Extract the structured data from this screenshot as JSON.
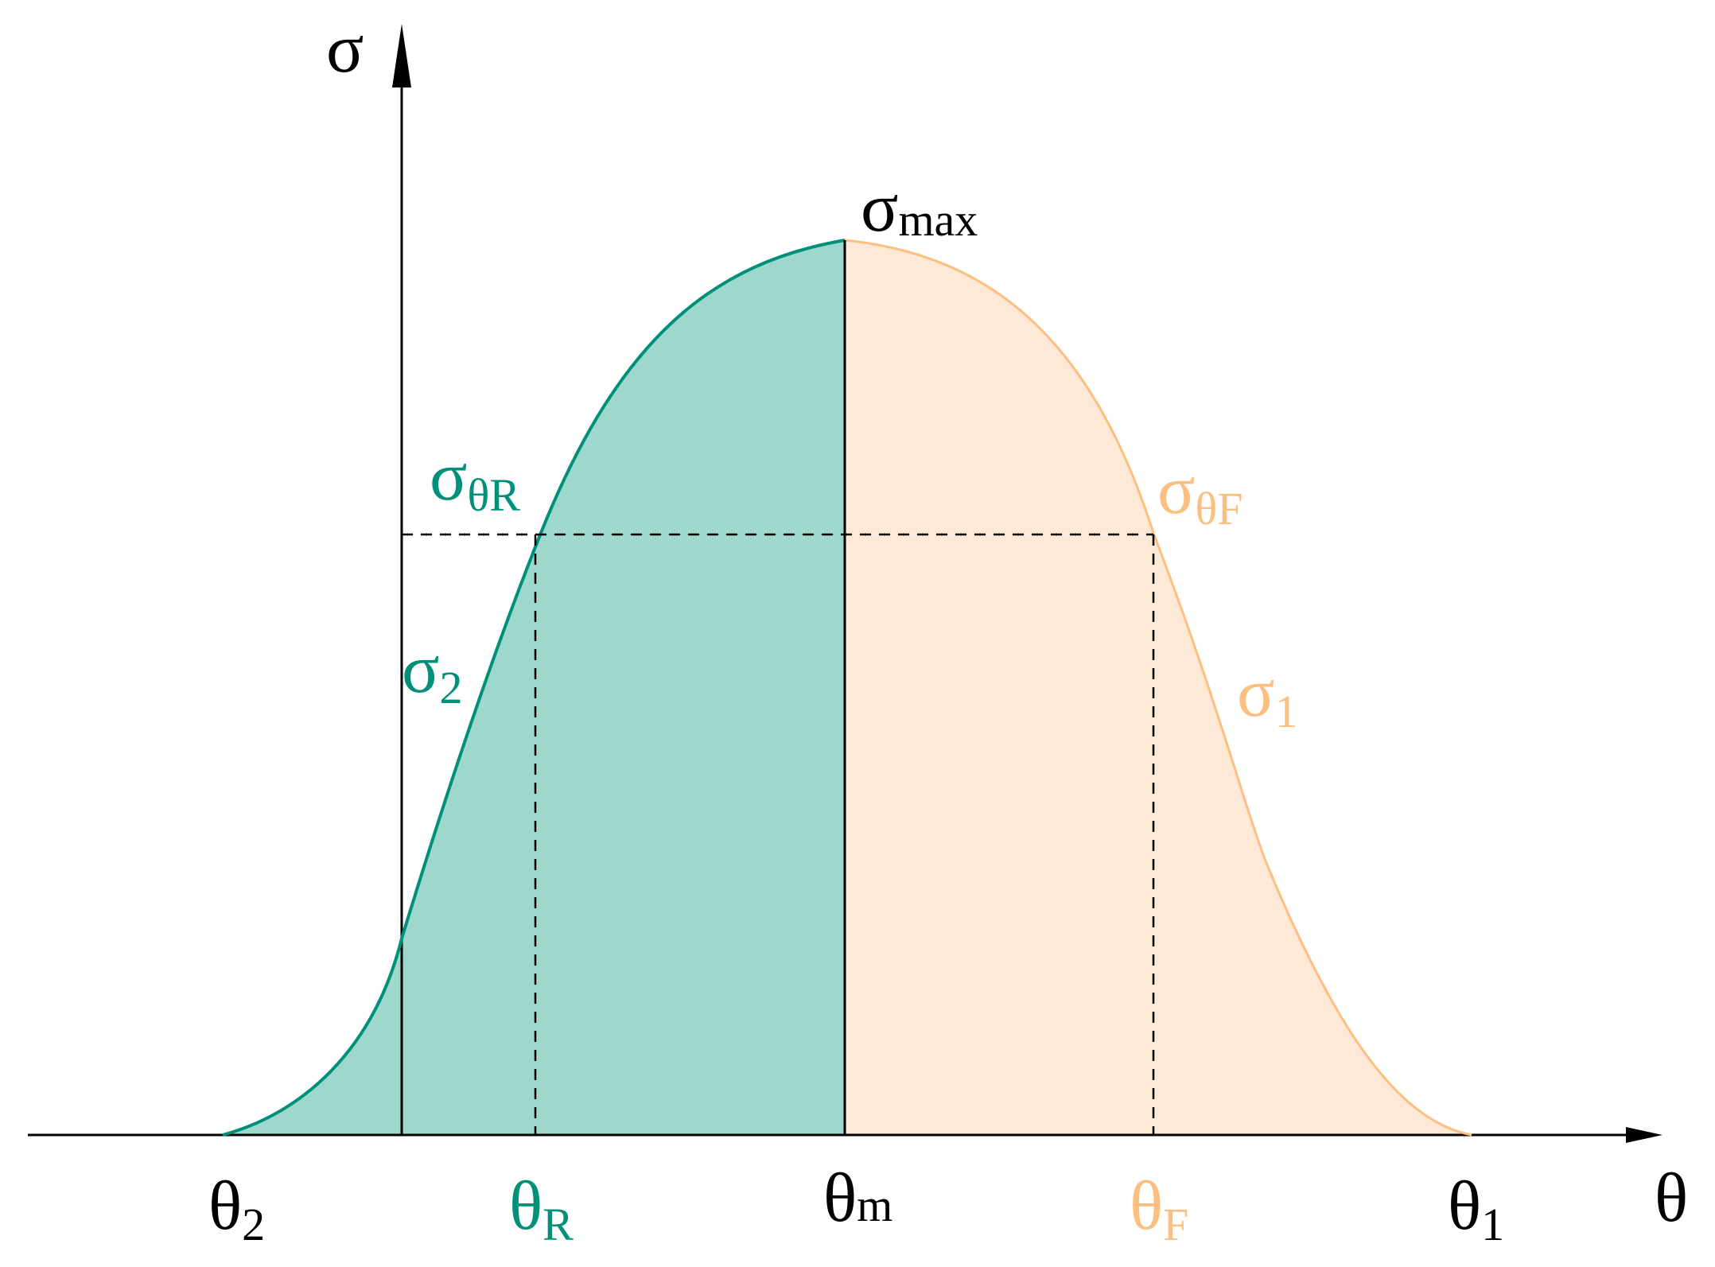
{
  "colors": {
    "axis": "#000000",
    "rising": "#00907a",
    "rising_fill": "#9ed7cc",
    "falling": "#fdbf80",
    "falling_fill": "#fde9d6",
    "neutral": "#000000"
  },
  "axes": {
    "y": {
      "symbol": "σ"
    },
    "x": {
      "symbol": "θ"
    }
  },
  "curve": {
    "peak_label": {
      "base": "σ",
      "sub": "max"
    },
    "rising_label": {
      "base": "σ",
      "sub": "2"
    },
    "falling_label": {
      "base": "σ",
      "sub": "1"
    }
  },
  "threshold": {
    "left_label": {
      "base": "σ",
      "sub": "θR"
    },
    "right_label": {
      "base": "σ",
      "sub": "θF"
    }
  },
  "x_ticks": [
    {
      "base": "θ",
      "sub": "2"
    },
    {
      "base": "θ",
      "sub": "R"
    },
    {
      "base": "θ",
      "sub": "m"
    },
    {
      "base": "θ",
      "sub": "F"
    },
    {
      "base": "θ",
      "sub": "1"
    }
  ]
}
